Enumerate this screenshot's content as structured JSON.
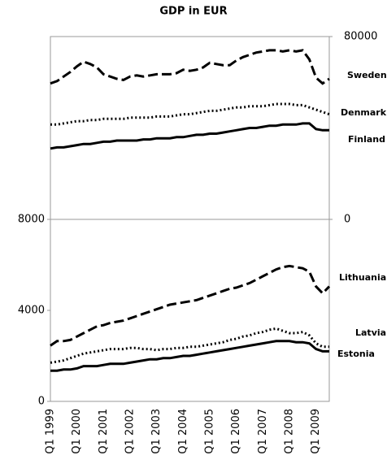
{
  "chart_data": {
    "type": "line",
    "title": "GDP in EUR",
    "categories": [
      "Q1 1999",
      null,
      null,
      null,
      "Q1 2000",
      null,
      null,
      null,
      "Q1 2001",
      null,
      null,
      null,
      "Q1 2002",
      null,
      null,
      null,
      "Q1 2003",
      null,
      null,
      null,
      "Q1 2004",
      null,
      null,
      null,
      "Q1 2005",
      null,
      null,
      null,
      "Q1 2006",
      null,
      null,
      null,
      "Q1 2007",
      null,
      null,
      null,
      "Q1 2008",
      null,
      null,
      null,
      "Q1 2009",
      null,
      null
    ],
    "panels": [
      {
        "axis": "right",
        "ylim": [
          0,
          80000
        ],
        "yticks": [
          0,
          80000
        ],
        "series": [
          {
            "name": "Sweden",
            "color": "#000000",
            "dash": "dashed",
            "values": [
              59500,
              60500,
              62500,
              64500,
              67000,
              69000,
              68000,
              66500,
              63500,
              62500,
              61500,
              61000,
              62500,
              63000,
              62500,
              63000,
              63500,
              63500,
              63500,
              64000,
              65500,
              65000,
              65500,
              66500,
              68500,
              68000,
              67500,
              67500,
              69500,
              71000,
              72000,
              73000,
              73500,
              74000,
              74000,
              73500,
              74000,
              73500,
              74000,
              70000,
              62000,
              59500,
              61500
            ]
          },
          {
            "name": "Denmark",
            "color": "#000000",
            "dash": "dotted",
            "values": [
              41500,
              41500,
              42000,
              42500,
              43000,
              43000,
              43500,
              43500,
              44000,
              44000,
              44000,
              44000,
              44500,
              44500,
              44500,
              44500,
              45000,
              45000,
              45000,
              45500,
              46000,
              46000,
              46500,
              47000,
              47500,
              47500,
              48000,
              48500,
              49000,
              49000,
              49500,
              49500,
              49500,
              50000,
              50500,
              50500,
              50500,
              50000,
              50000,
              49000,
              48000,
              47000,
              46000
            ]
          },
          {
            "name": "Finland",
            "color": "#000000",
            "dash": "solid",
            "values": [
              31000,
              31500,
              31500,
              32000,
              32500,
              33000,
              33000,
              33500,
              34000,
              34000,
              34500,
              34500,
              34500,
              34500,
              35000,
              35000,
              35500,
              35500,
              35500,
              36000,
              36000,
              36500,
              37000,
              37000,
              37500,
              37500,
              38000,
              38500,
              39000,
              39500,
              40000,
              40000,
              40500,
              41000,
              41000,
              41500,
              41500,
              41500,
              42000,
              42000,
              39500,
              39000,
              39000
            ]
          }
        ]
      },
      {
        "axis": "left",
        "ylim": [
          0,
          8000
        ],
        "yticks": [
          0,
          4000,
          8000
        ],
        "series": [
          {
            "name": "Lithuania",
            "color": "#000000",
            "dash": "dashed",
            "values": [
              2450,
              2650,
              2650,
              2700,
              2850,
              3000,
              3150,
              3300,
              3350,
              3450,
              3500,
              3550,
              3650,
              3750,
              3850,
              3950,
              4050,
              4150,
              4250,
              4300,
              4350,
              4400,
              4450,
              4550,
              4650,
              4750,
              4850,
              4950,
              5000,
              5100,
              5200,
              5350,
              5500,
              5650,
              5800,
              5900,
              5950,
              5900,
              5850,
              5700,
              5050,
              4750,
              5050
            ]
          },
          {
            "name": "Latvia",
            "color": "#000000",
            "dash": "dotted",
            "values": [
              1700,
              1750,
              1800,
              1900,
              2000,
              2100,
              2150,
              2200,
              2250,
              2300,
              2300,
              2300,
              2350,
              2350,
              2300,
              2300,
              2250,
              2300,
              2300,
              2350,
              2350,
              2400,
              2400,
              2450,
              2500,
              2550,
              2600,
              2700,
              2750,
              2850,
              2900,
              3000,
              3050,
              3150,
              3200,
              3100,
              3000,
              3000,
              3050,
              2900,
              2550,
              2400,
              2400
            ]
          },
          {
            "name": "Estonia",
            "color": "#000000",
            "dash": "solid",
            "values": [
              1350,
              1350,
              1400,
              1400,
              1450,
              1550,
              1550,
              1550,
              1600,
              1650,
              1650,
              1650,
              1700,
              1750,
              1800,
              1850,
              1850,
              1900,
              1900,
              1950,
              2000,
              2000,
              2050,
              2100,
              2150,
              2200,
              2250,
              2300,
              2350,
              2400,
              2450,
              2500,
              2550,
              2600,
              2650,
              2650,
              2650,
              2600,
              2600,
              2550,
              2300,
              2200,
              2200
            ]
          }
        ]
      }
    ]
  }
}
